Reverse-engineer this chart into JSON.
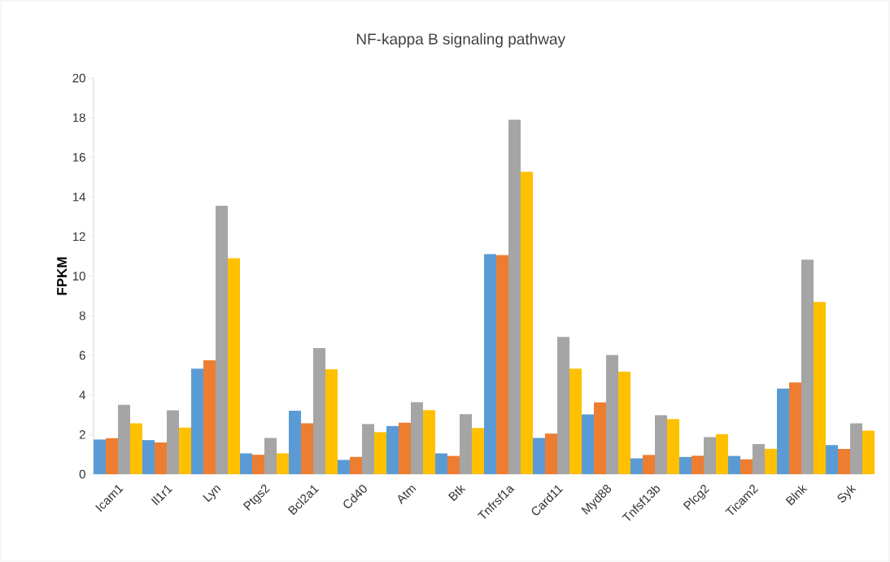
{
  "chart_data": {
    "type": "bar",
    "title": "NF-kappa B signaling pathway",
    "ylabel": "FPKM",
    "categories": [
      "Icam1",
      "Il1r1",
      "Lyn",
      "Ptgs2",
      "Bcl2a1",
      "Cd40",
      "Atm",
      "Btk",
      "Tnfrsf1a",
      "Card11",
      "Myd88",
      "Tnfsf13b",
      "Plcg2",
      "Ticam2",
      "Blnk",
      "Syk"
    ],
    "series": [
      {
        "color": "#5b9bd5",
        "values": [
          1.75,
          1.72,
          5.33,
          1.05,
          3.2,
          0.72,
          2.43,
          1.05,
          11.12,
          1.83,
          3.02,
          0.8,
          0.87,
          0.92,
          4.32,
          1.47
        ]
      },
      {
        "color": "#ed7d31",
        "values": [
          1.82,
          1.6,
          5.75,
          0.98,
          2.57,
          0.87,
          2.6,
          0.92,
          11.07,
          2.05,
          3.62,
          0.97,
          0.93,
          0.75,
          4.63,
          1.27
        ]
      },
      {
        "color": "#a5a5a5",
        "values": [
          3.5,
          3.22,
          13.55,
          1.83,
          6.37,
          2.53,
          3.63,
          3.03,
          17.9,
          6.93,
          6.02,
          2.98,
          1.87,
          1.52,
          10.83,
          2.57
        ]
      },
      {
        "color": "#ffc000",
        "values": [
          2.57,
          2.35,
          10.9,
          1.05,
          5.3,
          2.12,
          3.23,
          2.33,
          15.27,
          5.33,
          5.17,
          2.78,
          2.02,
          1.28,
          8.7,
          2.2
        ]
      }
    ],
    "ylim": [
      0,
      20
    ],
    "yticks": [
      0,
      2,
      4,
      6,
      8,
      10,
      12,
      14,
      16,
      18,
      20
    ]
  }
}
